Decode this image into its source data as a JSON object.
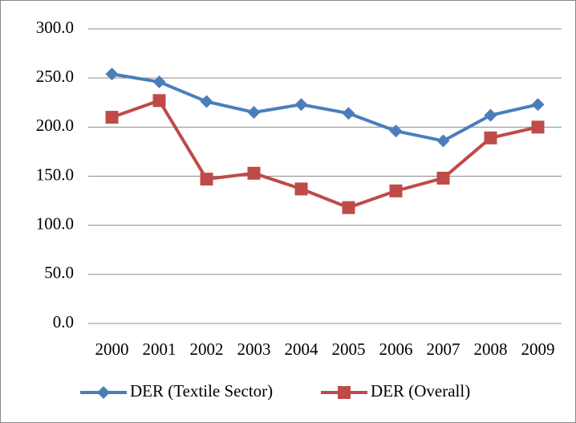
{
  "chart_data": {
    "type": "line",
    "categories": [
      "2000",
      "2001",
      "2002",
      "2003",
      "2004",
      "2005",
      "2006",
      "2007",
      "2008",
      "2009"
    ],
    "series": [
      {
        "name": "DER (Textile Sector)",
        "color": "#4a7ebb",
        "marker": "diamond",
        "values": [
          254,
          246,
          226,
          215,
          223,
          214,
          196,
          186,
          212,
          223
        ]
      },
      {
        "name": "DER (Overall)",
        "color": "#be4b48",
        "marker": "square",
        "values": [
          210,
          227,
          147,
          153,
          137,
          118,
          135,
          148,
          189,
          200
        ]
      }
    ],
    "ylim": [
      0,
      300
    ],
    "yticks": [
      {
        "value": 0,
        "label": "0.0"
      },
      {
        "value": 50,
        "label": "50.0"
      },
      {
        "value": 100,
        "label": "100.0"
      },
      {
        "value": 150,
        "label": "150.0"
      },
      {
        "value": 200,
        "label": "200.0"
      },
      {
        "value": 250,
        "label": "250.0"
      },
      {
        "value": 300,
        "label": "300.0"
      }
    ],
    "grid": true
  }
}
